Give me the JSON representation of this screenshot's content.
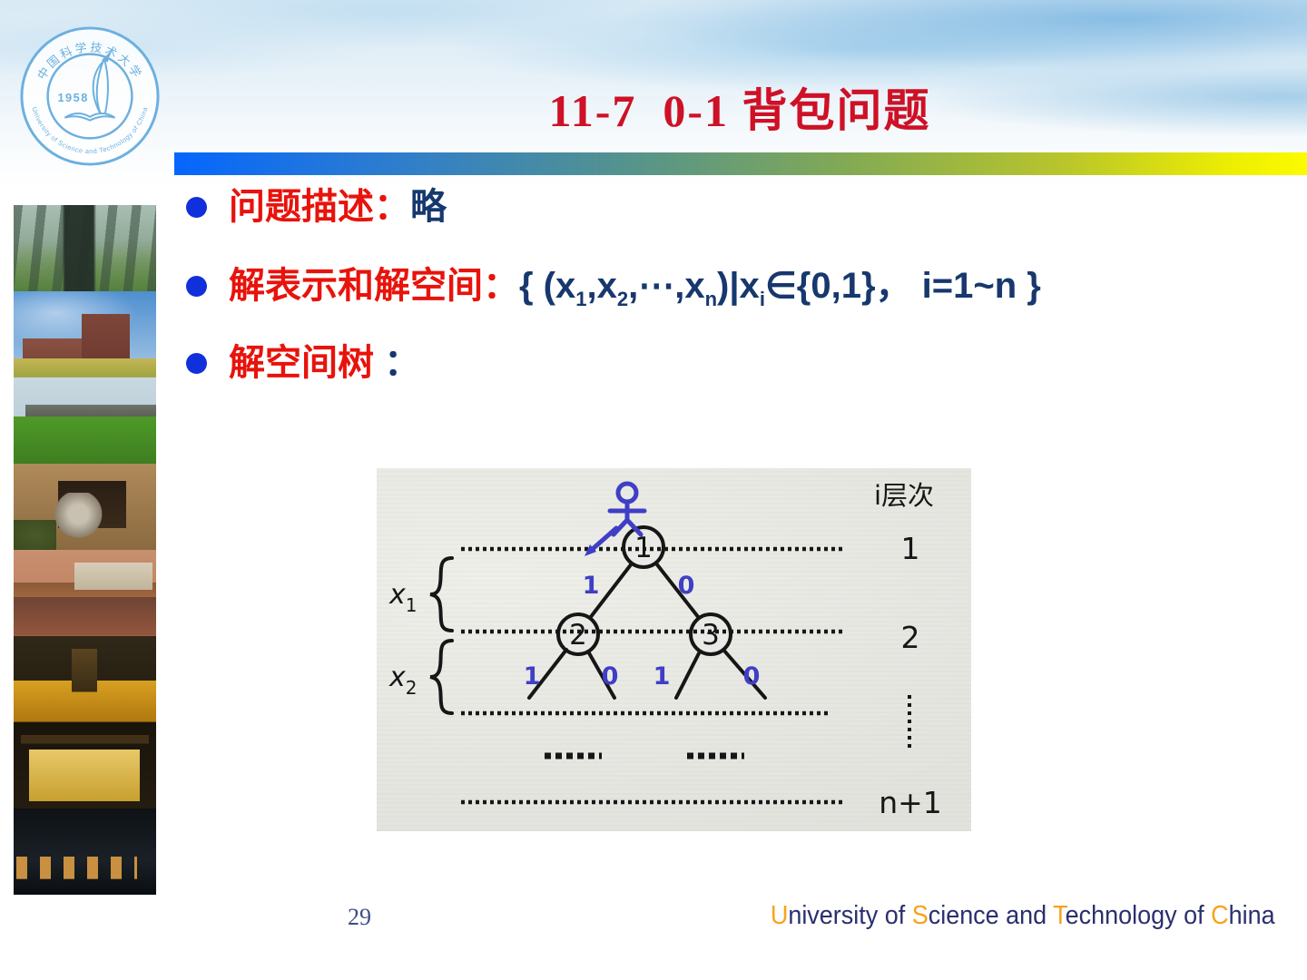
{
  "colors": {
    "title_red": "#CE1126",
    "bullet_red": "#E8130B",
    "navy": "#17386E",
    "footer_navy": "#2B2F6E",
    "accent_orange": "#F9A21B",
    "bullet_dot_blue": "#1030DC",
    "diagram_blue": "#3F3FC6",
    "bar_gradient_left": "#0666FD",
    "bar_gradient_right": "#FBFB00",
    "logo_blue": "#6CB0DF"
  },
  "header": {
    "title": "11-7  0-1 背包问题"
  },
  "bullets": [
    {
      "label": "问题描述：",
      "value_segments": [
        {
          "t": "略"
        }
      ]
    },
    {
      "label": "解表示和解空间：",
      "value_segments": [
        {
          "t": "{ (x"
        },
        {
          "t": "1",
          "sub": true
        },
        {
          "t": ",x"
        },
        {
          "t": "2",
          "sub": true
        },
        {
          "t": ",⋯,x"
        },
        {
          "t": "n",
          "sub": true
        },
        {
          "t": ")|x"
        },
        {
          "t": "i",
          "sub": true
        },
        {
          "t": "∈{0,1}，"
        },
        {
          "t": " i=1~n }"
        }
      ]
    },
    {
      "label": "解空间树",
      "value_segments": [
        {
          "t": " ："
        }
      ]
    }
  ],
  "diagram": {
    "level_axis_label": "i层次",
    "levels": [
      "1",
      "2",
      "n+1"
    ],
    "nodes": [
      "1",
      "2",
      "3"
    ],
    "branch_labels_level1": [
      "1",
      "0"
    ],
    "branch_labels_level2": [
      "1",
      "0",
      "1",
      "0"
    ],
    "var_labels": [
      {
        "base": "x",
        "sub": "1"
      },
      {
        "base": "x",
        "sub": "2"
      }
    ]
  },
  "logo": {
    "year": "1958",
    "ring_text_top": "中国科学技术大学",
    "ring_text_bottom": "University of Science and Technology of China"
  },
  "footer": {
    "page_number": "29",
    "university_segments": [
      {
        "t": "U",
        "hl": true
      },
      {
        "t": "niversity of "
      },
      {
        "t": "S",
        "hl": true
      },
      {
        "t": "cience and "
      },
      {
        "t": "T",
        "hl": true
      },
      {
        "t": "echnology of "
      },
      {
        "t": "C",
        "hl": true
      },
      {
        "t": "hina"
      }
    ]
  },
  "sidebar": {
    "photos": [
      "colonnade",
      "red-brick-building",
      "campus-lawn",
      "stone-lion-gate",
      "campus-pond",
      "night-statue",
      "school-gate-night",
      "night-building"
    ]
  }
}
